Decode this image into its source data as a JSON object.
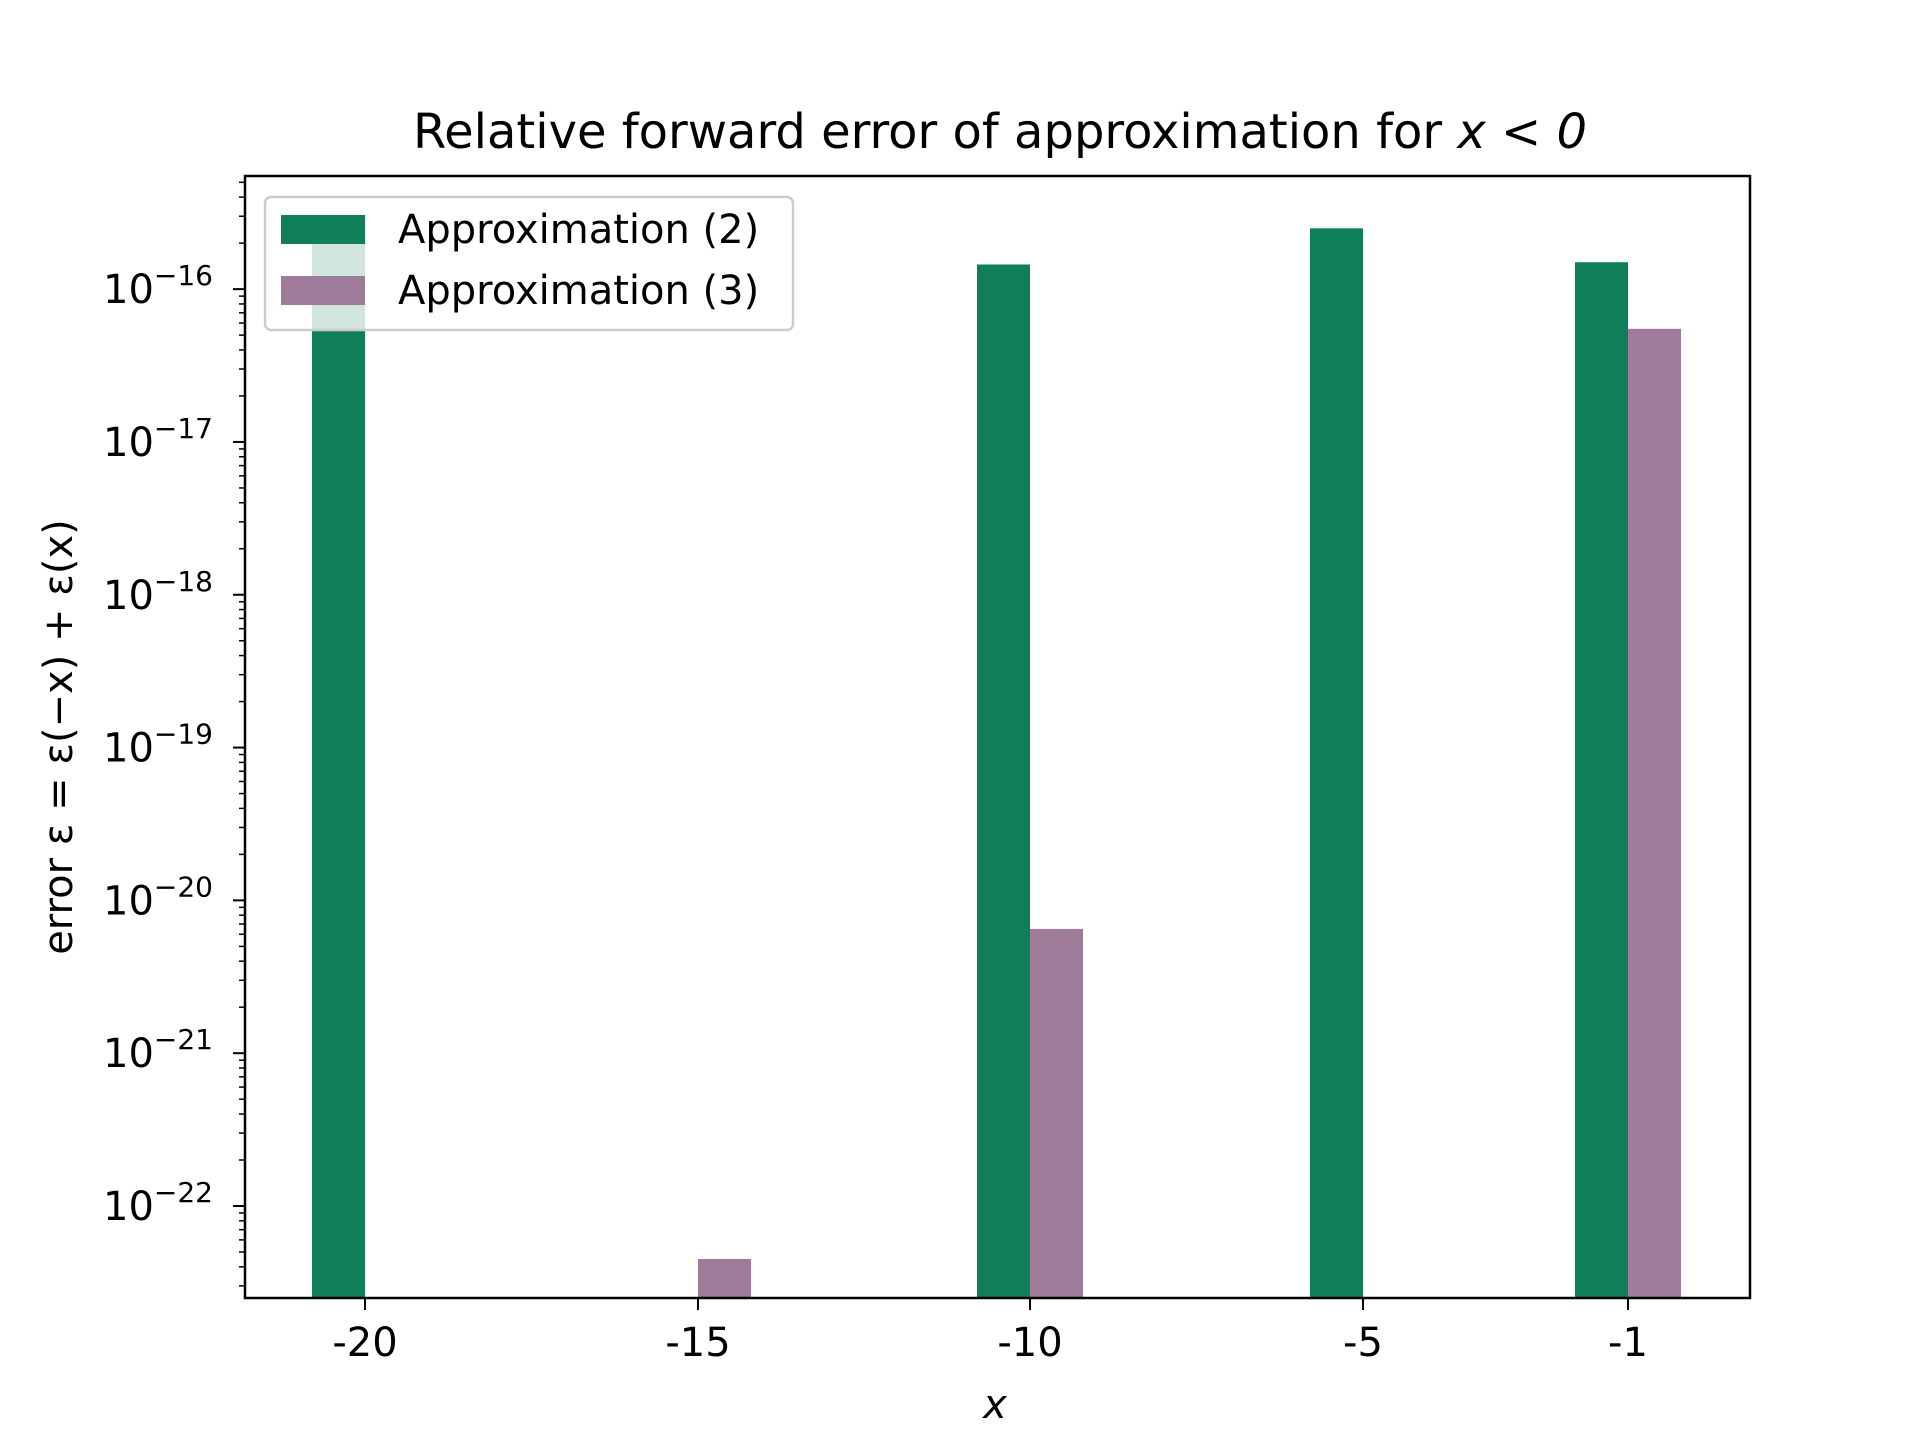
{
  "chart_data": {
    "type": "bar",
    "title": {
      "prefix": "Relative forward error of approximation for ",
      "expr": "x < 0"
    },
    "xlabel": "x",
    "ylabel": "error ε = ε(−x) + ε(x)",
    "yscale": "log",
    "ylim": [
      2.5e-23,
      5.5e-16
    ],
    "y_ticks": [
      {
        "value": 1e-16,
        "base": "10",
        "exp": "−16"
      },
      {
        "value": 1e-17,
        "base": "10",
        "exp": "−17"
      },
      {
        "value": 1e-18,
        "base": "10",
        "exp": "−18"
      },
      {
        "value": 1e-19,
        "base": "10",
        "exp": "−19"
      },
      {
        "value": 1e-20,
        "base": "10",
        "exp": "−20"
      },
      {
        "value": 1e-21,
        "base": "10",
        "exp": "−21"
      },
      {
        "value": 1e-22,
        "base": "10",
        "exp": "−22"
      }
    ],
    "categories": [
      "-20",
      "-15",
      "-10",
      "-5",
      "-1"
    ],
    "series": [
      {
        "name": "Approximation (2)",
        "color": "#0f7f5a",
        "values": [
          2.1e-16,
          null,
          1.45e-16,
          2.5e-16,
          1.5e-16
        ]
      },
      {
        "name": "Approximation (3)",
        "color": "#9e7b98",
        "values": [
          null,
          4.5e-23,
          6.5e-21,
          null,
          5.5e-17
        ]
      }
    ],
    "legend": "top-left",
    "grid": false
  }
}
